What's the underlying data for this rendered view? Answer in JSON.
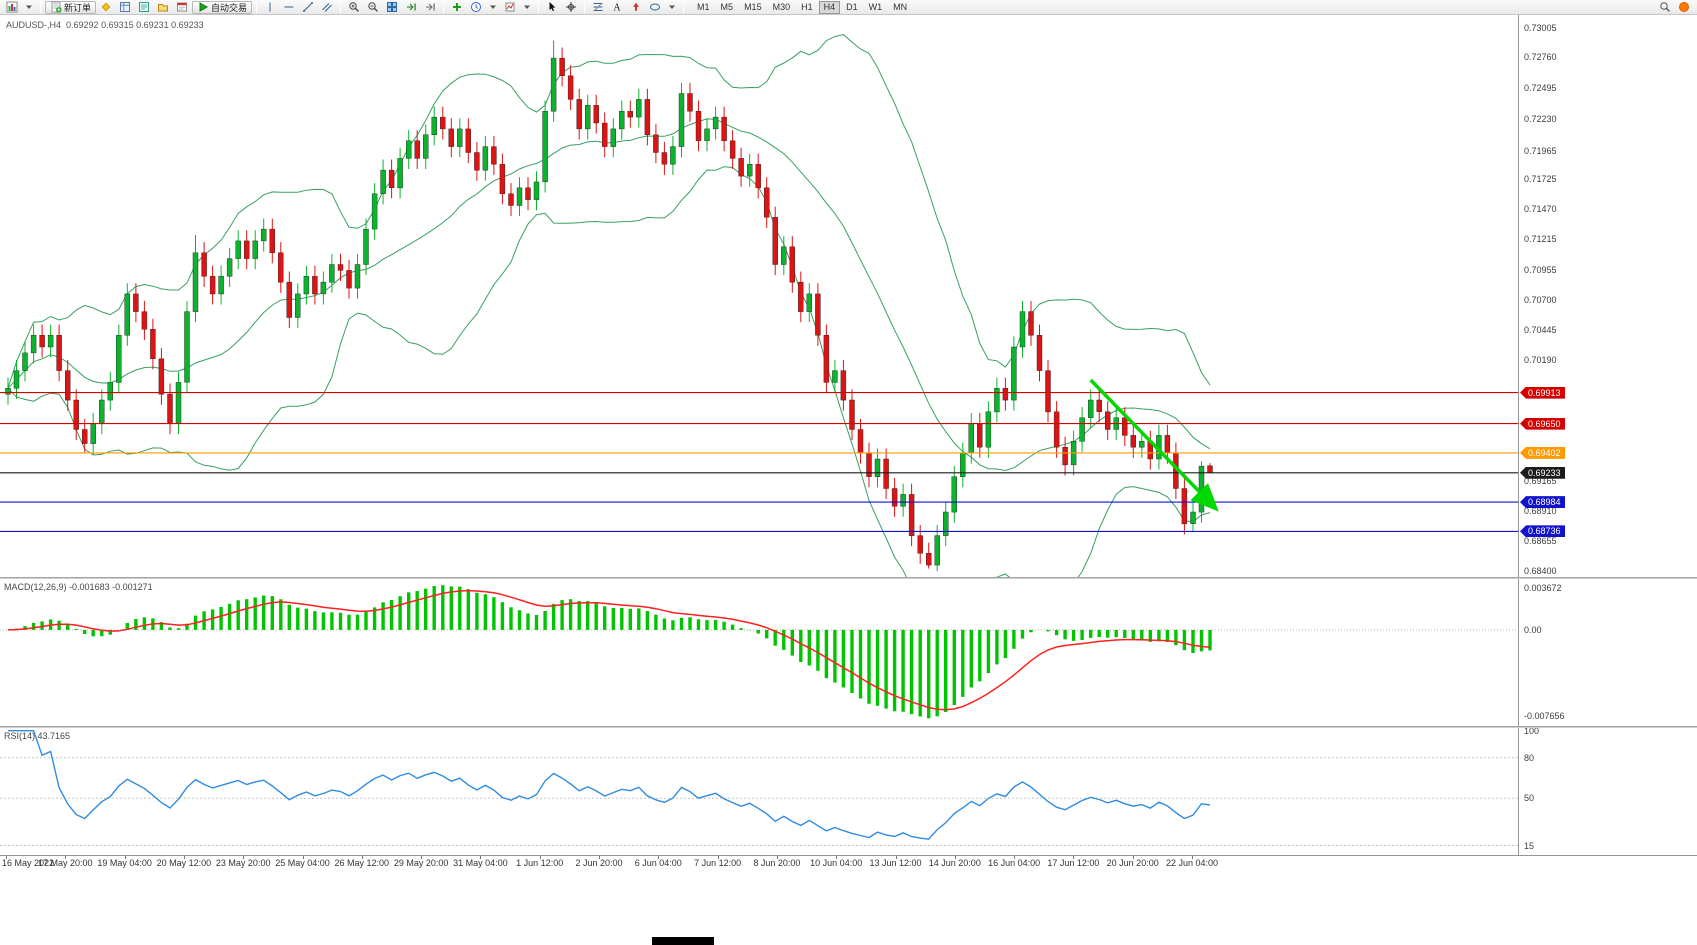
{
  "toolbar": {
    "new_order_label": "新订单",
    "autotrading_label": "自动交易",
    "timeframes": [
      {
        "label": "M1",
        "active": false
      },
      {
        "label": "M5",
        "active": false
      },
      {
        "label": "M15",
        "active": false
      },
      {
        "label": "M30",
        "active": false
      },
      {
        "label": "H1",
        "active": false
      },
      {
        "label": "H4",
        "active": true
      },
      {
        "label": "D1",
        "active": false
      },
      {
        "label": "W1",
        "active": false
      },
      {
        "label": "MN",
        "active": false
      }
    ]
  },
  "chart_data": {
    "type": "candlestick",
    "symbol": "AUDUSD",
    "period": "H4",
    "symbol_period": "AUDUSD-,H4",
    "ohlc_text": "0.69292 0.69315 0.69231 0.69233",
    "price_axis": {
      "max": 0.73116,
      "min": 0.68349,
      "ticks": [
        {
          "t": "0.73005",
          "p": 0.73005
        },
        {
          "t": "0.72760",
          "p": 0.7276
        },
        {
          "t": "0.72495",
          "p": 0.72495
        },
        {
          "t": "0.72230",
          "p": 0.7223
        },
        {
          "t": "0.71965",
          "p": 0.71965
        },
        {
          "t": "0.71725",
          "p": 0.71725
        },
        {
          "t": "0.71470",
          "p": 0.7147
        },
        {
          "t": "0.71215",
          "p": 0.71215
        },
        {
          "t": "0.70955",
          "p": 0.70955
        },
        {
          "t": "0.70700",
          "p": 0.707
        },
        {
          "t": "0.70445",
          "p": 0.70445
        },
        {
          "t": "0.70190",
          "p": 0.7019
        },
        {
          "t": "0.69165",
          "p": 0.69165
        },
        {
          "t": "0.68910",
          "p": 0.6891
        },
        {
          "t": "0.68655",
          "p": 0.68655
        },
        {
          "t": "0.68400",
          "p": 0.684
        }
      ]
    },
    "candle_colors": {
      "up": "#0cb42d",
      "down": "#dc1414"
    },
    "bollinger": {
      "period": 20,
      "deviation": 2,
      "color": "#38a060"
    },
    "hlines": [
      {
        "label": "0.69913",
        "price": 0.69913,
        "color": "#d40000"
      },
      {
        "label": "0.69650",
        "price": 0.6965,
        "color": "#d40000"
      },
      {
        "label": "0.69402",
        "price": 0.69402,
        "color": "#ff9a00"
      },
      {
        "label": "0.69233",
        "price": 0.69233,
        "color": "#1b1b1b"
      },
      {
        "label": "0.68984",
        "price": 0.68984,
        "color": "#1212cd"
      },
      {
        "label": "0.68736",
        "price": 0.68736,
        "color": "#1212cd"
      }
    ],
    "trend_arrow": {
      "from_bar": 127,
      "from_price": 0.7002,
      "to_bar": 141.6,
      "to_price": 0.68935,
      "color": "#00d800"
    },
    "macd": {
      "title": "MACD(12,26,9)",
      "values": "-0.001683 -0.001271",
      "fast": 12,
      "slow": 26,
      "signal_period": 9,
      "hist_color": "#00c400",
      "signal_color": "#ff2020",
      "axis_labels": [
        {
          "t": "0.003672",
          "v": 0.003672
        },
        {
          "t": "0.00",
          "v": 0
        },
        {
          "t": "-0.007656",
          "v": -0.007656
        }
      ]
    },
    "rsi": {
      "title": "RSI(14)",
      "value": "43.7165",
      "period": 14,
      "color": "#2f8ce0",
      "range": [
        8,
        102
      ],
      "levels": [
        80,
        50,
        15
      ],
      "axis_labels": [
        {
          "t": "100",
          "v": 100
        },
        {
          "t": "80",
          "v": 80
        },
        {
          "t": "50",
          "v": 50
        },
        {
          "t": "15",
          "v": 15
        }
      ]
    },
    "time_labels": [
      "16 May 2022",
      "17 May 20:00",
      "19 May 04:00",
      "20 May 12:00",
      "23 May 20:00",
      "25 May 04:00",
      "26 May 12:00",
      "29 May 20:00",
      "31 May 04:00",
      "1 Jun 12:00",
      "2 Jun 20:00",
      "6 Jun 04:00",
      "7 Jun 12:00",
      "8 Jun 20:00",
      "10 Jun 04:00",
      "13 Jun 12:00",
      "14 Jun 20:00",
      "16 Jun 04:00",
      "17 Jun 12:00",
      "20 Jun 20:00",
      "22 Jun 04:00"
    ],
    "candles": [
      [
        0.699,
        0.7004,
        0.6981,
        0.6995
      ],
      [
        0.6995,
        0.7019,
        0.6986,
        0.701
      ],
      [
        0.701,
        0.7034,
        0.7001,
        0.7025
      ],
      [
        0.7025,
        0.7049,
        0.7016,
        0.704
      ],
      [
        0.704,
        0.7049,
        0.7021,
        0.703
      ],
      [
        0.703,
        0.7049,
        0.7021,
        0.704
      ],
      [
        0.704,
        0.7049,
        0.7001,
        0.701
      ],
      [
        0.701,
        0.7019,
        0.6976,
        0.6985
      ],
      [
        0.6985,
        0.6994,
        0.6951,
        0.696
      ],
      [
        0.696,
        0.6969,
        0.694,
        0.6948
      ],
      [
        0.6948,
        0.6974,
        0.6939,
        0.6965
      ],
      [
        0.6965,
        0.6994,
        0.6956,
        0.6985
      ],
      [
        0.6985,
        0.7009,
        0.6976,
        0.7
      ],
      [
        0.7,
        0.7049,
        0.6991,
        0.704
      ],
      [
        0.704,
        0.7084,
        0.7031,
        0.7075
      ],
      [
        0.7075,
        0.7084,
        0.7051,
        0.706
      ],
      [
        0.706,
        0.7069,
        0.7036,
        0.7045
      ],
      [
        0.7045,
        0.7054,
        0.7011,
        0.702
      ],
      [
        0.702,
        0.7029,
        0.6981,
        0.699
      ],
      [
        0.699,
        0.6999,
        0.6956,
        0.6965
      ],
      [
        0.6965,
        0.7009,
        0.6956,
        0.7
      ],
      [
        0.7,
        0.7069,
        0.6991,
        0.706
      ],
      [
        0.706,
        0.7125,
        0.7051,
        0.711
      ],
      [
        0.711,
        0.7119,
        0.7081,
        0.709
      ],
      [
        0.709,
        0.7099,
        0.7066,
        0.7075
      ],
      [
        0.7075,
        0.7099,
        0.7066,
        0.709
      ],
      [
        0.709,
        0.7114,
        0.7081,
        0.7105
      ],
      [
        0.7105,
        0.7129,
        0.7096,
        0.712
      ],
      [
        0.712,
        0.7129,
        0.7096,
        0.7105
      ],
      [
        0.7105,
        0.7129,
        0.7096,
        0.712
      ],
      [
        0.712,
        0.7139,
        0.7111,
        0.713
      ],
      [
        0.713,
        0.7139,
        0.7101,
        0.711
      ],
      [
        0.711,
        0.7119,
        0.7076,
        0.7085
      ],
      [
        0.7085,
        0.7094,
        0.7046,
        0.7055
      ],
      [
        0.7055,
        0.7084,
        0.7046,
        0.7075
      ],
      [
        0.7075,
        0.7099,
        0.7066,
        0.709
      ],
      [
        0.709,
        0.7099,
        0.7066,
        0.7075
      ],
      [
        0.7075,
        0.7094,
        0.7066,
        0.7085
      ],
      [
        0.7085,
        0.7109,
        0.7076,
        0.71
      ],
      [
        0.71,
        0.7109,
        0.7086,
        0.7095
      ],
      [
        0.7095,
        0.7104,
        0.7071,
        0.708
      ],
      [
        0.708,
        0.7109,
        0.7071,
        0.71
      ],
      [
        0.71,
        0.7139,
        0.7091,
        0.713
      ],
      [
        0.713,
        0.7169,
        0.7121,
        0.716
      ],
      [
        0.716,
        0.7189,
        0.7151,
        0.718
      ],
      [
        0.718,
        0.7189,
        0.7156,
        0.7165
      ],
      [
        0.7165,
        0.7199,
        0.7156,
        0.719
      ],
      [
        0.719,
        0.7214,
        0.7181,
        0.7205
      ],
      [
        0.7205,
        0.7214,
        0.7181,
        0.719
      ],
      [
        0.719,
        0.7219,
        0.7181,
        0.721
      ],
      [
        0.721,
        0.7234,
        0.7201,
        0.7225
      ],
      [
        0.7225,
        0.7234,
        0.7206,
        0.7215
      ],
      [
        0.7215,
        0.7224,
        0.7191,
        0.72
      ],
      [
        0.72,
        0.7224,
        0.7191,
        0.7215
      ],
      [
        0.7215,
        0.7224,
        0.7186,
        0.7195
      ],
      [
        0.7195,
        0.7204,
        0.7171,
        0.718
      ],
      [
        0.718,
        0.7209,
        0.7171,
        0.72
      ],
      [
        0.72,
        0.7209,
        0.7176,
        0.7185
      ],
      [
        0.7185,
        0.7194,
        0.7151,
        0.716
      ],
      [
        0.716,
        0.7169,
        0.7141,
        0.715
      ],
      [
        0.715,
        0.7174,
        0.7141,
        0.7165
      ],
      [
        0.7165,
        0.7174,
        0.7146,
        0.7155
      ],
      [
        0.7155,
        0.7179,
        0.7146,
        0.717
      ],
      [
        0.717,
        0.7239,
        0.7161,
        0.723
      ],
      [
        0.723,
        0.729,
        0.7221,
        0.7275
      ],
      [
        0.7275,
        0.7284,
        0.7251,
        0.726
      ],
      [
        0.726,
        0.7269,
        0.7231,
        0.724
      ],
      [
        0.724,
        0.7249,
        0.7206,
        0.7215
      ],
      [
        0.7215,
        0.7244,
        0.7206,
        0.7235
      ],
      [
        0.7235,
        0.7244,
        0.7211,
        0.722
      ],
      [
        0.722,
        0.7229,
        0.7191,
        0.72
      ],
      [
        0.72,
        0.7224,
        0.7191,
        0.7215
      ],
      [
        0.7215,
        0.7239,
        0.7206,
        0.723
      ],
      [
        0.723,
        0.7239,
        0.7216,
        0.7225
      ],
      [
        0.7225,
        0.7249,
        0.7216,
        0.724
      ],
      [
        0.724,
        0.7249,
        0.7201,
        0.721
      ],
      [
        0.721,
        0.7219,
        0.7186,
        0.7195
      ],
      [
        0.7195,
        0.7204,
        0.7176,
        0.7185
      ],
      [
        0.7185,
        0.7209,
        0.7176,
        0.72
      ],
      [
        0.72,
        0.7254,
        0.7191,
        0.7245
      ],
      [
        0.7245,
        0.7254,
        0.7221,
        0.723
      ],
      [
        0.723,
        0.7239,
        0.7196,
        0.7205
      ],
      [
        0.7205,
        0.7224,
        0.7196,
        0.7215
      ],
      [
        0.7215,
        0.7234,
        0.7206,
        0.7225
      ],
      [
        0.7225,
        0.7234,
        0.7196,
        0.7205
      ],
      [
        0.7205,
        0.7214,
        0.7181,
        0.719
      ],
      [
        0.719,
        0.7199,
        0.7166,
        0.7175
      ],
      [
        0.7175,
        0.7194,
        0.7166,
        0.7185
      ],
      [
        0.7185,
        0.7194,
        0.7156,
        0.7165
      ],
      [
        0.7165,
        0.7174,
        0.7131,
        0.714
      ],
      [
        0.714,
        0.7149,
        0.7091,
        0.71
      ],
      [
        0.71,
        0.7124,
        0.7091,
        0.7115
      ],
      [
        0.7115,
        0.7124,
        0.7076,
        0.7085
      ],
      [
        0.7085,
        0.7094,
        0.7051,
        0.706
      ],
      [
        0.706,
        0.7084,
        0.7051,
        0.7075
      ],
      [
        0.7075,
        0.7084,
        0.7031,
        0.704
      ],
      [
        0.704,
        0.7049,
        0.6991,
        0.7
      ],
      [
        0.7,
        0.7019,
        0.6991,
        0.701
      ],
      [
        0.701,
        0.7019,
        0.6976,
        0.6985
      ],
      [
        0.6985,
        0.6994,
        0.6951,
        0.696
      ],
      [
        0.696,
        0.6969,
        0.6931,
        0.694
      ],
      [
        0.694,
        0.6949,
        0.6911,
        0.692
      ],
      [
        0.692,
        0.6944,
        0.6911,
        0.6935
      ],
      [
        0.6935,
        0.6944,
        0.6901,
        0.691
      ],
      [
        0.691,
        0.6919,
        0.6886,
        0.6895
      ],
      [
        0.6895,
        0.6914,
        0.6886,
        0.6905
      ],
      [
        0.6905,
        0.6914,
        0.6861,
        0.687
      ],
      [
        0.687,
        0.6879,
        0.6846,
        0.6855
      ],
      [
        0.6855,
        0.6864,
        0.6842,
        0.6845
      ],
      [
        0.6845,
        0.6879,
        0.684,
        0.687
      ],
      [
        0.687,
        0.6899,
        0.6861,
        0.689
      ],
      [
        0.689,
        0.6929,
        0.6881,
        0.692
      ],
      [
        0.692,
        0.6949,
        0.6911,
        0.694
      ],
      [
        0.694,
        0.6974,
        0.6931,
        0.6965
      ],
      [
        0.6965,
        0.6974,
        0.6936,
        0.6945
      ],
      [
        0.6945,
        0.6984,
        0.6936,
        0.6975
      ],
      [
        0.6975,
        0.7004,
        0.6966,
        0.6995
      ],
      [
        0.6995,
        0.7004,
        0.6976,
        0.6985
      ],
      [
        0.6985,
        0.7039,
        0.6976,
        0.703
      ],
      [
        0.703,
        0.7069,
        0.7021,
        0.706
      ],
      [
        0.706,
        0.7069,
        0.7031,
        0.704
      ],
      [
        0.704,
        0.7049,
        0.7001,
        0.701
      ],
      [
        0.701,
        0.7019,
        0.6966,
        0.6975
      ],
      [
        0.6975,
        0.6984,
        0.6936,
        0.6945
      ],
      [
        0.6945,
        0.6954,
        0.6921,
        0.693
      ],
      [
        0.693,
        0.6959,
        0.6921,
        0.695
      ],
      [
        0.695,
        0.6979,
        0.6941,
        0.697
      ],
      [
        0.697,
        0.6994,
        0.6961,
        0.6985
      ],
      [
        0.6985,
        0.6994,
        0.6966,
        0.6975
      ],
      [
        0.6975,
        0.6984,
        0.6951,
        0.696
      ],
      [
        0.696,
        0.6979,
        0.6951,
        0.697
      ],
      [
        0.697,
        0.6979,
        0.6946,
        0.6955
      ],
      [
        0.6955,
        0.6964,
        0.6936,
        0.6945
      ],
      [
        0.6945,
        0.6959,
        0.6936,
        0.695
      ],
      [
        0.695,
        0.6959,
        0.6926,
        0.6935
      ],
      [
        0.6935,
        0.6964,
        0.6926,
        0.6955
      ],
      [
        0.6955,
        0.6964,
        0.6931,
        0.694
      ],
      [
        0.694,
        0.6949,
        0.6901,
        0.691
      ],
      [
        0.691,
        0.6919,
        0.6871,
        0.688
      ],
      [
        0.688,
        0.6899,
        0.6873,
        0.689
      ],
      [
        0.689,
        0.6933,
        0.6881,
        0.6929
      ],
      [
        0.69292,
        0.69315,
        0.69231,
        0.69233
      ]
    ]
  }
}
